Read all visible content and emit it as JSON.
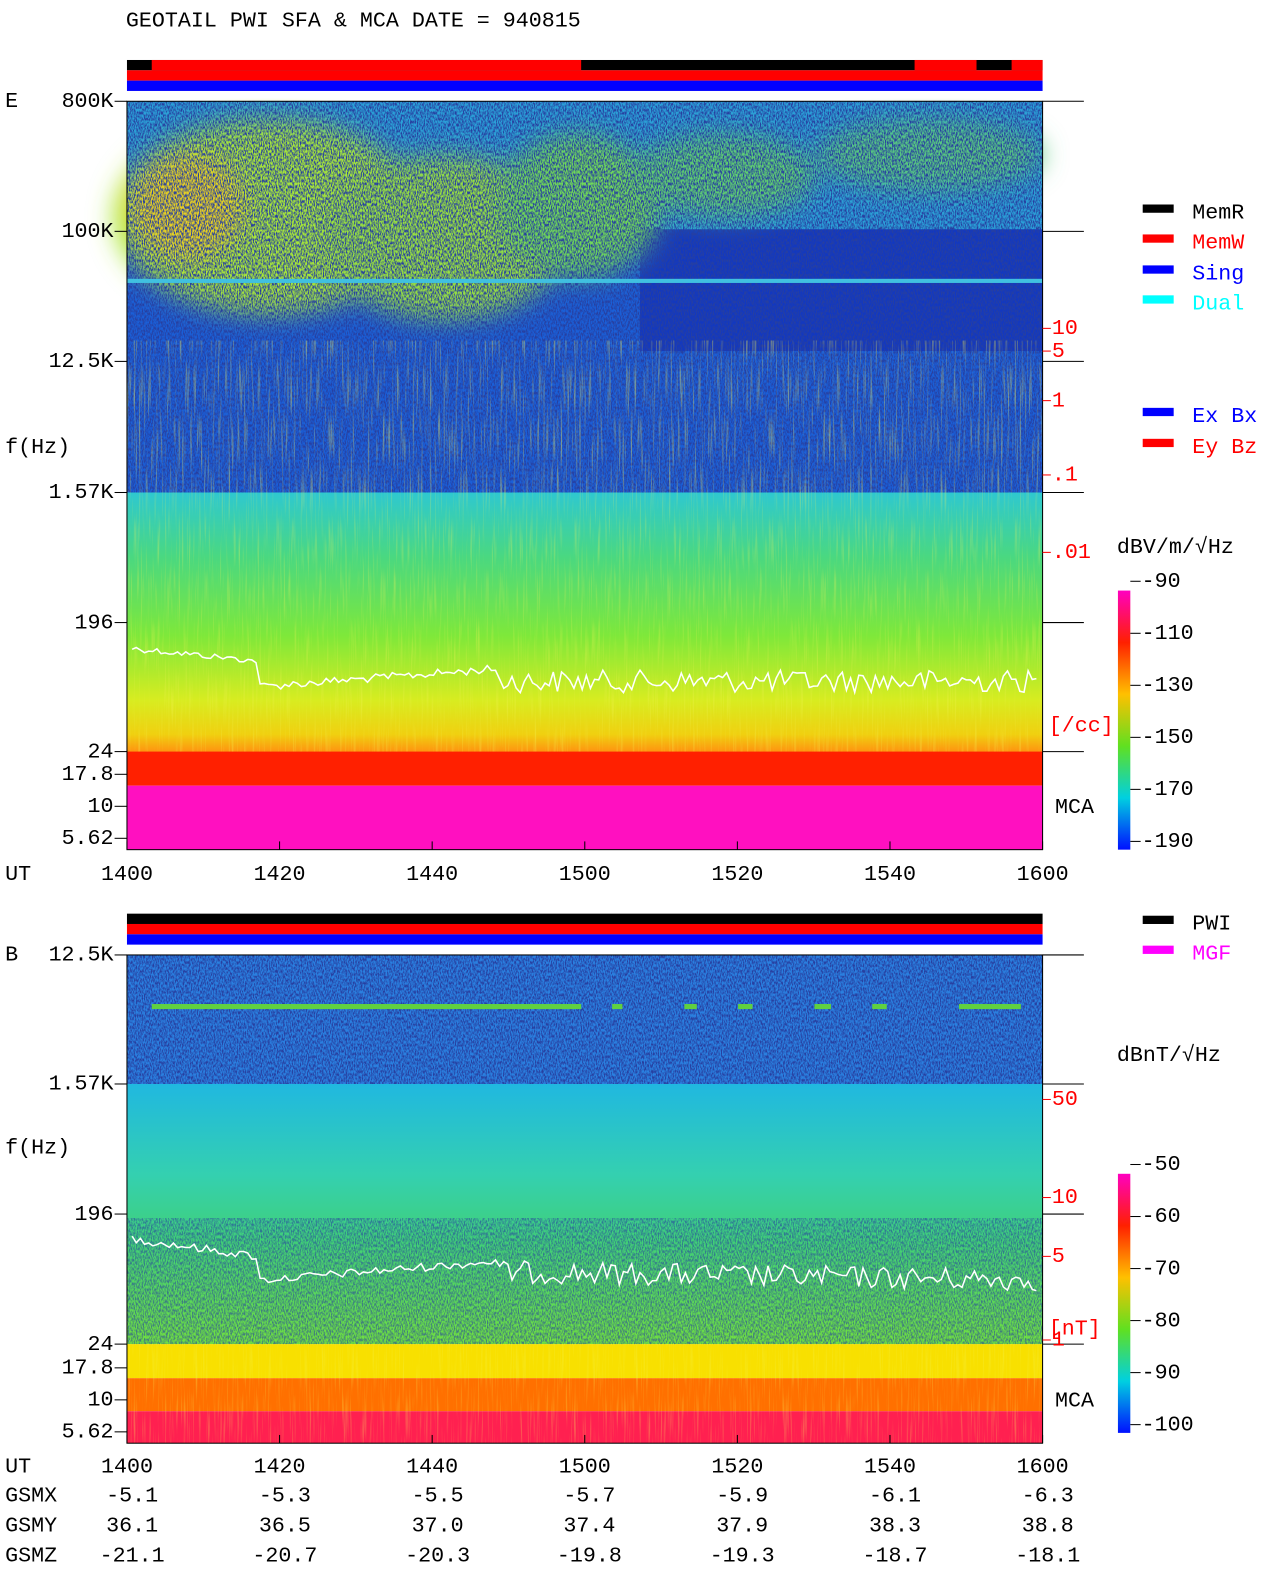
{
  "title": "GEOTAIL   PWI SFA & MCA   DATE = 940815",
  "panels": [
    {
      "label": "E",
      "y_label": "f(Hz)",
      "y_ticks": [
        "800K",
        "100K",
        "12.5K",
        "1.57K",
        "196",
        "24",
        "17.8",
        "10",
        "5.62"
      ],
      "overlay_ticks": [
        "10",
        "5",
        "1",
        ".1",
        ".01"
      ],
      "overlay_unit": "[/cc]",
      "mca": "MCA",
      "x_label": "UT",
      "x_ticks": [
        1400,
        1420,
        1440,
        1500,
        1520,
        1540,
        1600
      ],
      "colorbar_label": "dBV/m/√Hz",
      "colorbar_ticks": [
        -90,
        -110,
        -130,
        -150,
        -170,
        -190
      ]
    },
    {
      "label": "B",
      "y_label": "f(Hz)",
      "y_ticks": [
        "12.5K",
        "1.57K",
        "196",
        "24",
        "17.8",
        "10",
        "5.62"
      ],
      "overlay_ticks": [
        "50",
        "10",
        "5",
        "1"
      ],
      "overlay_unit": "[nT]",
      "mca": "MCA",
      "x_label": "UT",
      "x_ticks": [
        1400,
        1420,
        1440,
        1500,
        1520,
        1540,
        1600
      ],
      "colorbar_label": "dBnT/√Hz",
      "colorbar_ticks": [
        -50,
        -60,
        -70,
        -80,
        -90,
        -100
      ]
    }
  ],
  "legend_status": [
    {
      "name": "MemR",
      "color": "#000000"
    },
    {
      "name": "MemW",
      "color": "#ff0000"
    },
    {
      "name": "Sing",
      "color": "#0000ff"
    },
    {
      "name": "Dual",
      "color": "#00ffff"
    }
  ],
  "legend_component": [
    {
      "name": "Ex Bx",
      "color": "#0000ff"
    },
    {
      "name": "Ey Bz",
      "color": "#ff0000"
    }
  ],
  "legend_source": [
    {
      "name": "PWI",
      "color": "#000000"
    },
    {
      "name": "MGF",
      "color": "#ff00ff"
    }
  ],
  "orbit": {
    "rows": [
      {
        "label": "GSMX",
        "values": [
          "-5.1",
          "-5.3",
          "-5.5",
          "-5.7",
          "-5.9",
          "-6.1",
          "-6.3"
        ]
      },
      {
        "label": "GSMY",
        "values": [
          "36.1",
          "36.5",
          "37.0",
          "37.4",
          "37.9",
          "38.3",
          "38.8"
        ]
      },
      {
        "label": "GSMZ",
        "values": [
          "-21.1",
          "-20.7",
          "-20.3",
          "-19.8",
          "-19.3",
          "-18.7",
          "-18.1"
        ]
      }
    ]
  }
}
